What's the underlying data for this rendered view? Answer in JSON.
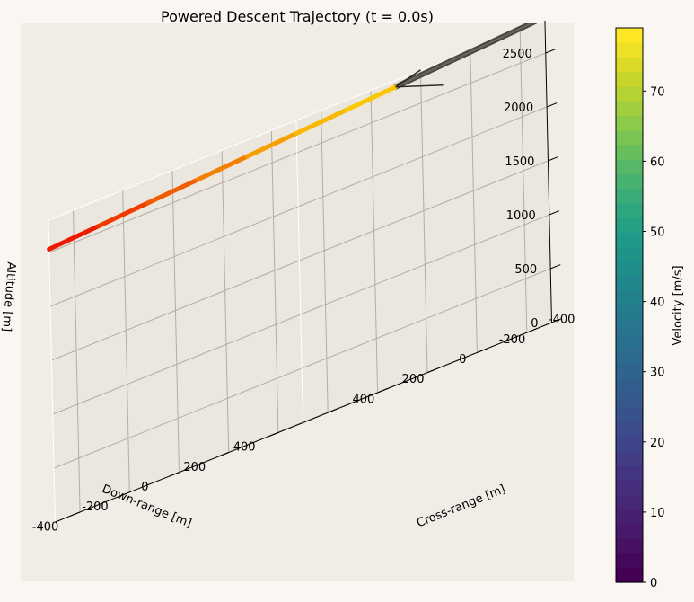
{
  "chart_data": {
    "type": "line3d",
    "title": "Powered Descent Trajectory (t = 0.0s)",
    "xlabel": "Down-range [m]",
    "ylabel": "Cross-range [m]",
    "zlabel": "Altitude [m]",
    "x_ticks": [
      -400,
      -200,
      0,
      200,
      400
    ],
    "y_ticks": [
      -400,
      -200,
      0,
      200,
      400
    ],
    "z_ticks": [
      0,
      500,
      1000,
      1500,
      2000,
      2500
    ],
    "xlim": [
      -500,
      500
    ],
    "ylim": [
      -500,
      500
    ],
    "zlim": [
      0,
      2800
    ],
    "grid": true,
    "colorbar": {
      "label": "Velocity [m/s]",
      "min": 0,
      "max": 79,
      "ticks": [
        0,
        10,
        20,
        30,
        40,
        50,
        60,
        70
      ],
      "colors": [
        "#440154",
        "#46085c",
        "#471063",
        "#48186a",
        "#482071",
        "#472777",
        "#462e7d",
        "#443582",
        "#423d85",
        "#3e4489",
        "#3b4b8b",
        "#38528c",
        "#35588d",
        "#325e8d",
        "#2f648e",
        "#2c6a8e",
        "#29708e",
        "#27768e",
        "#257b8e",
        "#23818d",
        "#21878c",
        "#1f8d8a",
        "#1f9388",
        "#21998a",
        "#26a083",
        "#2ea67e",
        "#3aac77",
        "#47b26f",
        "#56b867",
        "#67be5d",
        "#79c453",
        "#8cca49",
        "#a0ce3e",
        "#b4d234",
        "#c8d62b",
        "#dbda26",
        "#ede027",
        "#fde725"
      ]
    },
    "trajectory": [
      {
        "x": 500,
        "y": -500,
        "z": 2530
      },
      {
        "x": 300,
        "y": -500,
        "z": 2560
      },
      {
        "x": 100,
        "y": -500,
        "z": 2590
      },
      {
        "x": -100,
        "y": -500,
        "z": 2620
      },
      {
        "x": -300,
        "y": -500,
        "z": 2650
      },
      {
        "x": -500,
        "y": -500,
        "z": 2680
      },
      {
        "x": -700,
        "y": -500,
        "z": 2710
      },
      {
        "x": -900,
        "y": -500,
        "z": 2740
      }
    ],
    "glide": [
      {
        "x": -900,
        "y": -500,
        "z": 2740
      },
      {
        "x": -1700,
        "y": -500,
        "z": 2860
      },
      {
        "x": -2700,
        "y": -500,
        "z": 3010
      }
    ]
  }
}
